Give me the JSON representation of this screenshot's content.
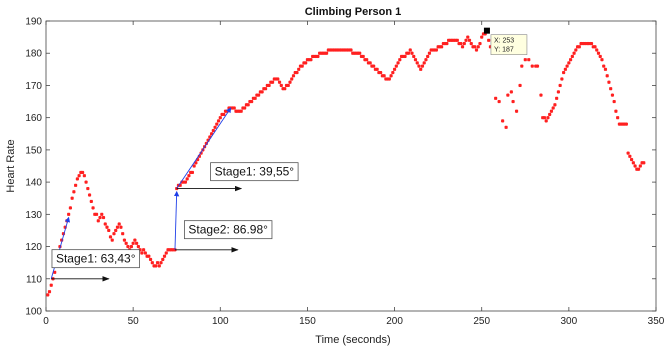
{
  "chart_data": {
    "type": "scatter",
    "title": "Climbing Person 1",
    "xlabel": "Time (seconds)",
    "ylabel": "Heart Rate",
    "xlim": [
      0,
      350
    ],
    "ylim": [
      100,
      190
    ],
    "xticks": [
      0,
      50,
      100,
      150,
      200,
      250,
      300,
      350
    ],
    "yticks": [
      100,
      110,
      120,
      130,
      140,
      150,
      160,
      170,
      180,
      190
    ],
    "grid": false,
    "marker_color": "#ff2020",
    "points": [
      [
        1,
        105
      ],
      [
        2,
        106
      ],
      [
        3,
        108
      ],
      [
        4,
        110
      ],
      [
        5,
        112
      ],
      [
        6,
        115
      ],
      [
        7,
        117
      ],
      [
        8,
        120
      ],
      [
        9,
        122
      ],
      [
        10,
        124
      ],
      [
        11,
        126
      ],
      [
        12,
        128
      ],
      [
        13,
        130
      ],
      [
        14,
        132
      ],
      [
        15,
        135
      ],
      [
        16,
        137
      ],
      [
        17,
        139
      ],
      [
        18,
        141
      ],
      [
        19,
        142
      ],
      [
        20,
        143
      ],
      [
        21,
        143
      ],
      [
        22,
        142
      ],
      [
        23,
        140
      ],
      [
        24,
        138
      ],
      [
        25,
        136
      ],
      [
        26,
        134
      ],
      [
        27,
        132
      ],
      [
        28,
        130
      ],
      [
        29,
        130
      ],
      [
        30,
        128
      ],
      [
        31,
        129
      ],
      [
        32,
        130
      ],
      [
        33,
        129
      ],
      [
        34,
        127
      ],
      [
        35,
        126
      ],
      [
        36,
        125
      ],
      [
        37,
        123
      ],
      [
        38,
        122
      ],
      [
        39,
        124
      ],
      [
        40,
        125
      ],
      [
        41,
        126
      ],
      [
        42,
        127
      ],
      [
        43,
        126
      ],
      [
        44,
        124
      ],
      [
        45,
        122
      ],
      [
        46,
        121
      ],
      [
        47,
        120
      ],
      [
        48,
        119
      ],
      [
        49,
        120
      ],
      [
        50,
        121
      ],
      [
        51,
        122
      ],
      [
        52,
        121
      ],
      [
        53,
        120
      ],
      [
        54,
        119
      ],
      [
        55,
        118
      ],
      [
        56,
        119
      ],
      [
        57,
        118
      ],
      [
        58,
        117
      ],
      [
        59,
        117
      ],
      [
        60,
        116
      ],
      [
        61,
        115
      ],
      [
        62,
        114
      ],
      [
        63,
        114
      ],
      [
        64,
        115
      ],
      [
        65,
        114
      ],
      [
        66,
        115
      ],
      [
        67,
        116
      ],
      [
        68,
        117
      ],
      [
        69,
        118
      ],
      [
        70,
        119
      ],
      [
        71,
        119
      ],
      [
        72,
        119
      ],
      [
        73,
        119
      ],
      [
        74,
        119
      ],
      [
        75,
        138
      ],
      [
        76,
        139
      ],
      [
        77,
        139
      ],
      [
        78,
        140
      ],
      [
        79,
        140
      ],
      [
        80,
        140
      ],
      [
        81,
        141
      ],
      [
        82,
        142
      ],
      [
        83,
        143
      ],
      [
        84,
        143
      ],
      [
        85,
        145
      ],
      [
        86,
        146
      ],
      [
        87,
        147
      ],
      [
        88,
        148
      ],
      [
        89,
        149
      ],
      [
        90,
        150
      ],
      [
        91,
        151
      ],
      [
        92,
        152
      ],
      [
        93,
        153
      ],
      [
        94,
        154
      ],
      [
        95,
        155
      ],
      [
        96,
        156
      ],
      [
        97,
        157
      ],
      [
        98,
        158
      ],
      [
        99,
        159
      ],
      [
        100,
        160
      ],
      [
        101,
        161
      ],
      [
        102,
        161
      ],
      [
        103,
        162
      ],
      [
        104,
        162
      ],
      [
        105,
        163
      ],
      [
        106,
        163
      ],
      [
        107,
        163
      ],
      [
        108,
        163
      ],
      [
        109,
        162
      ],
      [
        110,
        162
      ],
      [
        111,
        162
      ],
      [
        112,
        162
      ],
      [
        113,
        163
      ],
      [
        114,
        163
      ],
      [
        115,
        164
      ],
      [
        116,
        164
      ],
      [
        117,
        165
      ],
      [
        118,
        165
      ],
      [
        119,
        166
      ],
      [
        120,
        166
      ],
      [
        121,
        167
      ],
      [
        122,
        167
      ],
      [
        123,
        168
      ],
      [
        124,
        168
      ],
      [
        125,
        169
      ],
      [
        126,
        169
      ],
      [
        127,
        170
      ],
      [
        128,
        170
      ],
      [
        129,
        171
      ],
      [
        130,
        171
      ],
      [
        131,
        172
      ],
      [
        132,
        172
      ],
      [
        133,
        172
      ],
      [
        134,
        171
      ],
      [
        135,
        170
      ],
      [
        136,
        169
      ],
      [
        137,
        169
      ],
      [
        138,
        170
      ],
      [
        139,
        170
      ],
      [
        140,
        171
      ],
      [
        141,
        172
      ],
      [
        142,
        173
      ],
      [
        143,
        174
      ],
      [
        144,
        174
      ],
      [
        145,
        175
      ],
      [
        146,
        176
      ],
      [
        147,
        176
      ],
      [
        148,
        177
      ],
      [
        149,
        177
      ],
      [
        150,
        178
      ],
      [
        151,
        178
      ],
      [
        152,
        178
      ],
      [
        153,
        179
      ],
      [
        154,
        179
      ],
      [
        155,
        179
      ],
      [
        156,
        179
      ],
      [
        157,
        180
      ],
      [
        158,
        180
      ],
      [
        159,
        180
      ],
      [
        160,
        180
      ],
      [
        161,
        180
      ],
      [
        162,
        181
      ],
      [
        163,
        181
      ],
      [
        164,
        181
      ],
      [
        165,
        181
      ],
      [
        166,
        181
      ],
      [
        167,
        181
      ],
      [
        168,
        181
      ],
      [
        169,
        181
      ],
      [
        170,
        181
      ],
      [
        171,
        181
      ],
      [
        172,
        181
      ],
      [
        173,
        181
      ],
      [
        174,
        181
      ],
      [
        175,
        181
      ],
      [
        176,
        180
      ],
      [
        177,
        180
      ],
      [
        178,
        180
      ],
      [
        179,
        180
      ],
      [
        180,
        180
      ],
      [
        181,
        179
      ],
      [
        182,
        179
      ],
      [
        183,
        178
      ],
      [
        184,
        178
      ],
      [
        185,
        177
      ],
      [
        186,
        177
      ],
      [
        187,
        176
      ],
      [
        188,
        176
      ],
      [
        189,
        175
      ],
      [
        190,
        175
      ],
      [
        191,
        174
      ],
      [
        192,
        174
      ],
      [
        193,
        173
      ],
      [
        194,
        173
      ],
      [
        195,
        172
      ],
      [
        196,
        172
      ],
      [
        197,
        172
      ],
      [
        198,
        173
      ],
      [
        199,
        174
      ],
      [
        200,
        175
      ],
      [
        201,
        176
      ],
      [
        202,
        177
      ],
      [
        203,
        178
      ],
      [
        204,
        179
      ],
      [
        205,
        179
      ],
      [
        206,
        179
      ],
      [
        207,
        180
      ],
      [
        208,
        180
      ],
      [
        209,
        181
      ],
      [
        210,
        180
      ],
      [
        211,
        179
      ],
      [
        212,
        178
      ],
      [
        213,
        177
      ],
      [
        214,
        176
      ],
      [
        215,
        175
      ],
      [
        216,
        176
      ],
      [
        217,
        177
      ],
      [
        218,
        178
      ],
      [
        219,
        179
      ],
      [
        220,
        180
      ],
      [
        221,
        181
      ],
      [
        222,
        181
      ],
      [
        223,
        181
      ],
      [
        224,
        181
      ],
      [
        225,
        182
      ],
      [
        226,
        182
      ],
      [
        227,
        182
      ],
      [
        228,
        183
      ],
      [
        229,
        183
      ],
      [
        230,
        183
      ],
      [
        231,
        184
      ],
      [
        232,
        184
      ],
      [
        233,
        184
      ],
      [
        234,
        184
      ],
      [
        235,
        184
      ],
      [
        236,
        184
      ],
      [
        237,
        183
      ],
      [
        238,
        183
      ],
      [
        239,
        182
      ],
      [
        240,
        183
      ],
      [
        241,
        184
      ],
      [
        242,
        185
      ],
      [
        243,
        184
      ],
      [
        244,
        183
      ],
      [
        245,
        182
      ],
      [
        246,
        182
      ],
      [
        247,
        181
      ],
      [
        248,
        182
      ],
      [
        249,
        183
      ],
      [
        250,
        185
      ],
      [
        251,
        186
      ],
      [
        252,
        186
      ],
      [
        253,
        187
      ],
      [
        254,
        184
      ],
      [
        255,
        182
      ],
      [
        258,
        166
      ],
      [
        260,
        165
      ],
      [
        262,
        159
      ],
      [
        264,
        157
      ],
      [
        265,
        167
      ],
      [
        267,
        168
      ],
      [
        268,
        165
      ],
      [
        270,
        162
      ],
      [
        272,
        170
      ],
      [
        273,
        176
      ],
      [
        275,
        178
      ],
      [
        277,
        178
      ],
      [
        279,
        176
      ],
      [
        281,
        176
      ],
      [
        282,
        176
      ],
      [
        284,
        167
      ],
      [
        285,
        160
      ],
      [
        286,
        160
      ],
      [
        287,
        159
      ],
      [
        288,
        160
      ],
      [
        289,
        161
      ],
      [
        290,
        162
      ],
      [
        291,
        163
      ],
      [
        292,
        164
      ],
      [
        293,
        166
      ],
      [
        294,
        168
      ],
      [
        295,
        170
      ],
      [
        296,
        172
      ],
      [
        297,
        174
      ],
      [
        298,
        175
      ],
      [
        299,
        176
      ],
      [
        300,
        177
      ],
      [
        301,
        178
      ],
      [
        302,
        179
      ],
      [
        303,
        180
      ],
      [
        304,
        181
      ],
      [
        305,
        182
      ],
      [
        306,
        182
      ],
      [
        307,
        183
      ],
      [
        308,
        183
      ],
      [
        309,
        183
      ],
      [
        310,
        183
      ],
      [
        311,
        183
      ],
      [
        312,
        183
      ],
      [
        313,
        183
      ],
      [
        314,
        182
      ],
      [
        315,
        182
      ],
      [
        316,
        181
      ],
      [
        317,
        180
      ],
      [
        318,
        179
      ],
      [
        319,
        178
      ],
      [
        320,
        176
      ],
      [
        321,
        175
      ],
      [
        322,
        173
      ],
      [
        323,
        171
      ],
      [
        324,
        169
      ],
      [
        325,
        167
      ],
      [
        326,
        165
      ],
      [
        327,
        162
      ],
      [
        328,
        160
      ],
      [
        329,
        158
      ],
      [
        330,
        158
      ],
      [
        331,
        158
      ],
      [
        332,
        158
      ],
      [
        333,
        158
      ],
      [
        334,
        149
      ],
      [
        335,
        148
      ],
      [
        336,
        147
      ],
      [
        337,
        146
      ],
      [
        338,
        145
      ],
      [
        339,
        144
      ],
      [
        340,
        144
      ],
      [
        341,
        145
      ],
      [
        342,
        146
      ],
      [
        343,
        146
      ]
    ],
    "datatip": {
      "x_text": "X: 253",
      "y_text": "Y: 187",
      "x": 253,
      "y": 187
    },
    "annotations": [
      {
        "text": "Stage1: 63,43°",
        "fit_line": [
          [
            3,
            110
          ],
          [
            13,
            129
          ]
        ],
        "baseline": [
          [
            3,
            110
          ],
          [
            36,
            110
          ]
        ],
        "anchor": [
          4,
          115
        ]
      },
      {
        "text": "Stage2: 86.98°",
        "fit_line": [
          [
            74,
            119
          ],
          [
            75,
            137
          ]
        ],
        "baseline": [
          [
            74,
            119
          ],
          [
            110,
            119
          ]
        ],
        "anchor": [
          80,
          124
        ]
      },
      {
        "text": "Stage1: 39,55°",
        "fit_line": [
          [
            75,
            138
          ],
          [
            106,
            163
          ]
        ],
        "baseline": [
          [
            75,
            138
          ],
          [
            112,
            138
          ]
        ],
        "anchor": [
          95,
          142
        ]
      }
    ]
  }
}
